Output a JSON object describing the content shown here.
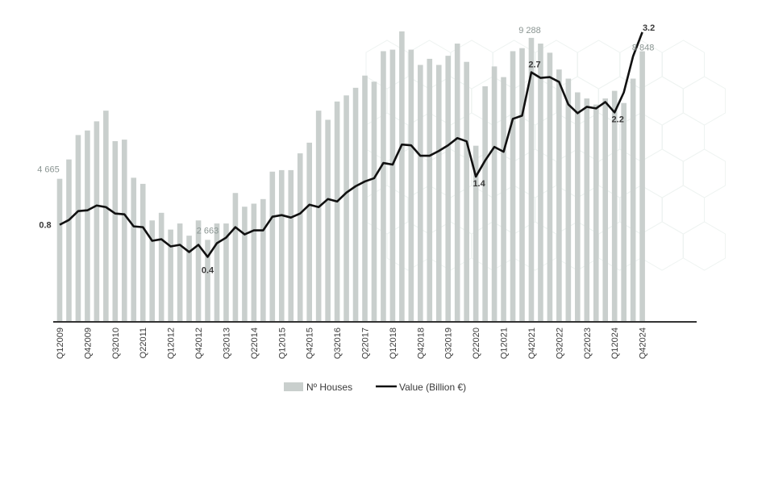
{
  "chart_data": {
    "type": "bar",
    "categories": [
      "Q12009",
      "Q22009",
      "Q32009",
      "Q42009",
      "Q12010",
      "Q22010",
      "Q32010",
      "Q42010",
      "Q12011",
      "Q22011",
      "Q32011",
      "Q42011",
      "Q12012",
      "Q22012",
      "Q32012",
      "Q42012",
      "Q12013",
      "Q22013",
      "Q32013",
      "Q42013",
      "Q12014",
      "Q22014",
      "Q32014",
      "Q42014",
      "Q12015",
      "Q22015",
      "Q32015",
      "Q42015",
      "Q12016",
      "Q22016",
      "Q32016",
      "Q42016",
      "Q12017",
      "Q22017",
      "Q32017",
      "Q42017",
      "Q12018",
      "Q22018",
      "Q32018",
      "Q42018",
      "Q12019",
      "Q22019",
      "Q32019",
      "Q42019",
      "Q12020",
      "Q22020",
      "Q32020",
      "Q42020",
      "Q12021",
      "Q22021",
      "Q32021",
      "Q42021",
      "Q12022",
      "Q22022",
      "Q32022",
      "Q42022",
      "Q12023",
      "Q22023",
      "Q32023",
      "Q42023",
      "Q12024",
      "Q22024",
      "Q32024",
      "Q42024"
    ],
    "visible_tick_labels": [
      "Q12009",
      "Q42009",
      "Q32010",
      "Q22011",
      "Q12012",
      "Q42012",
      "Q32013",
      "Q22014",
      "Q12015",
      "Q42015",
      "Q32016",
      "Q22017",
      "Q12018",
      "Q42018",
      "Q32019",
      "Q22020",
      "Q12021",
      "Q42021",
      "Q32022",
      "Q22023",
      "Q12024",
      "Q42024"
    ],
    "series": [
      {
        "name": "Nº Houses",
        "type": "bar",
        "axis": "left",
        "values": [
          4665,
          5300,
          6100,
          6250,
          6550,
          6900,
          5900,
          5950,
          4700,
          4500,
          3300,
          3550,
          3000,
          3200,
          2800,
          3300,
          2663,
          3200,
          3200,
          4200,
          3750,
          3850,
          4000,
          4900,
          4950,
          4950,
          5500,
          5850,
          6900,
          6600,
          7200,
          7400,
          7650,
          8050,
          7850,
          8850,
          8900,
          9500,
          8900,
          8400,
          8600,
          8400,
          8700,
          9100,
          8500,
          5750,
          7700,
          8350,
          8000,
          8850,
          8950,
          9288,
          9100,
          8800,
          8250,
          7950,
          7500,
          7300,
          7100,
          7300,
          7550,
          7150,
          7950,
          8848
        ],
        "labels": [
          {
            "category": "Q12009",
            "text": "4 665"
          },
          {
            "category": "Q12013",
            "text": "2 663"
          },
          {
            "category": "Q42021",
            "text": "9 288"
          },
          {
            "category": "Q42024",
            "text": "8 848"
          }
        ]
      },
      {
        "name": "Value (Billion €)",
        "type": "line",
        "axis": "right",
        "values": [
          0.8,
          0.86,
          0.97,
          0.98,
          1.04,
          1.02,
          0.94,
          0.93,
          0.78,
          0.77,
          0.6,
          0.62,
          0.53,
          0.55,
          0.46,
          0.55,
          0.4,
          0.57,
          0.64,
          0.77,
          0.68,
          0.73,
          0.73,
          0.9,
          0.92,
          0.89,
          0.94,
          1.05,
          1.02,
          1.12,
          1.09,
          1.2,
          1.28,
          1.34,
          1.38,
          1.57,
          1.55,
          1.8,
          1.79,
          1.66,
          1.66,
          1.72,
          1.79,
          1.88,
          1.84,
          1.4,
          1.6,
          1.77,
          1.71,
          2.12,
          2.16,
          2.7,
          2.63,
          2.64,
          2.58,
          2.3,
          2.19,
          2.27,
          2.25,
          2.33,
          2.2,
          2.45,
          2.9,
          3.2
        ],
        "labels": [
          {
            "category": "Q12009",
            "text": "0.8"
          },
          {
            "category": "Q12013",
            "text": "0.4"
          },
          {
            "category": "Q22020",
            "text": "1.4"
          },
          {
            "category": "Q42021",
            "text": "2.7"
          },
          {
            "category": "Q12024",
            "text": "2.2"
          },
          {
            "category": "Q42024",
            "text": "3.2"
          }
        ]
      }
    ],
    "left_ylim": [
      0,
      10000
    ],
    "right_ylim": [
      -0.4,
      3.4
    ],
    "grid": false,
    "legend": "bottom-center",
    "colors": {
      "bars": "#c9cfcd",
      "line": "#111111",
      "axis": "#333333",
      "bar_label": "#8a9592",
      "line_label": "#3a3a3a"
    }
  }
}
